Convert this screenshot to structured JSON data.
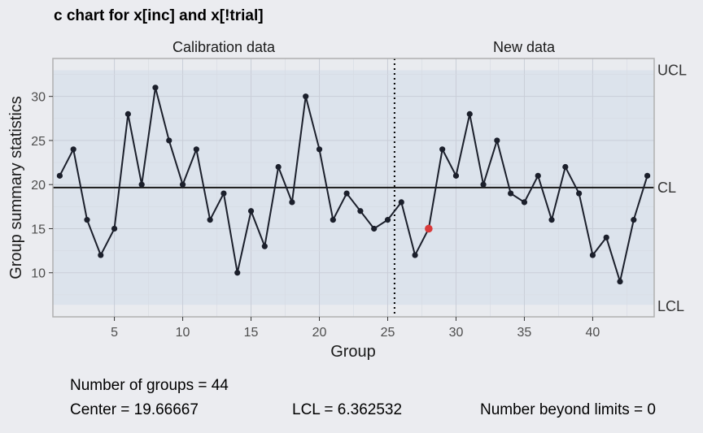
{
  "title": "c chart for x[inc] and x[!trial]",
  "chart_data": {
    "type": "line",
    "panels": [
      "Calibration data",
      "New data"
    ],
    "xlabel": "Group",
    "ylabel": "Group summary statistics",
    "x": [
      1,
      2,
      3,
      4,
      5,
      6,
      7,
      8,
      9,
      10,
      11,
      12,
      13,
      14,
      15,
      16,
      17,
      18,
      19,
      20,
      21,
      22,
      23,
      24,
      25,
      26,
      27,
      28,
      29,
      30,
      31,
      32,
      33,
      34,
      35,
      36,
      37,
      38,
      39,
      40,
      41,
      42,
      43,
      44
    ],
    "values": [
      21,
      24,
      16,
      12,
      15,
      28,
      20,
      31,
      25,
      20,
      24,
      16,
      19,
      10,
      17,
      13,
      22,
      18,
      30,
      24,
      16,
      19,
      17,
      15,
      16,
      18,
      12,
      15,
      24,
      21,
      28,
      20,
      25,
      19,
      18,
      21,
      16,
      22,
      19,
      12,
      14,
      9,
      16,
      21
    ],
    "highlighted_points": [
      28
    ],
    "calibration_groups": 25,
    "center": 19.66667,
    "lcl": 6.362532,
    "ucl": 32.9708,
    "limit_labels": {
      "ucl": "UCL",
      "cl": "CL",
      "lcl": "LCL"
    },
    "xticks": [
      5,
      10,
      15,
      20,
      25,
      30,
      35,
      40
    ],
    "yticks": [
      10,
      15,
      20,
      25,
      30
    ],
    "xlim": [
      0.5,
      44.5
    ],
    "ylim": [
      5,
      34.3
    ],
    "grid": true,
    "colors": {
      "line": "#1b1f2b",
      "point": "#1b1f2b",
      "highlight": "#d93a3a",
      "limits_band": "#dce3ec",
      "plot_bg": "#e9ebef",
      "panel_border": "#b0b0b0",
      "center_line": "#1a1a1a"
    }
  },
  "stats": {
    "n_groups": "Number of groups = 44",
    "center": "Center = 19.66667",
    "lcl": "LCL = 6.362532",
    "beyond": "Number beyond limits = 0"
  }
}
